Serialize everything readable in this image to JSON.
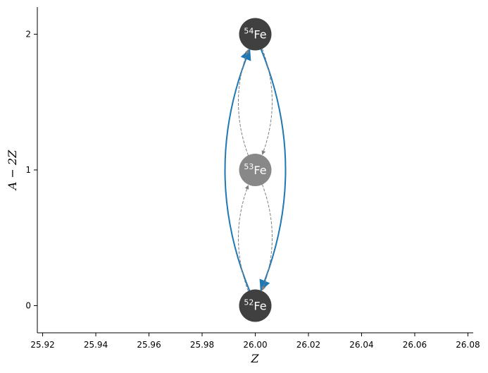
{
  "chart_data": {
    "type": "network",
    "xlabel": "Z",
    "ylabel": "A − 2Z",
    "xlim": [
      25.918,
      26.082
    ],
    "ylim": [
      -0.2,
      2.2
    ],
    "x_ticks": [
      {
        "value": 25.92,
        "label": "25.92"
      },
      {
        "value": 25.94,
        "label": "25.94"
      },
      {
        "value": 25.96,
        "label": "25.96"
      },
      {
        "value": 25.98,
        "label": "25.98"
      },
      {
        "value": 26.0,
        "label": "26.00"
      },
      {
        "value": 26.02,
        "label": "26.02"
      },
      {
        "value": 26.04,
        "label": "26.04"
      },
      {
        "value": 26.06,
        "label": "26.06"
      },
      {
        "value": 26.08,
        "label": "26.08"
      }
    ],
    "y_ticks": [
      {
        "value": 0,
        "label": "0"
      },
      {
        "value": 1,
        "label": "1"
      },
      {
        "value": 2,
        "label": "2"
      }
    ],
    "nodes": [
      {
        "id": "fe54",
        "mass": "54",
        "element": "Fe",
        "z": 26,
        "n_minus_z": 2,
        "color": "#404040"
      },
      {
        "id": "fe53",
        "mass": "53",
        "element": "Fe",
        "z": 26,
        "n_minus_z": 1,
        "color": "#888888"
      },
      {
        "id": "fe52",
        "mass": "52",
        "element": "Fe",
        "z": 26,
        "n_minus_z": 0,
        "color": "#404040"
      }
    ],
    "edges": [
      {
        "from": "fe52",
        "to": "fe54",
        "style": "solid",
        "color": "#1f77b4"
      },
      {
        "from": "fe54",
        "to": "fe52",
        "style": "solid",
        "color": "#1f77b4"
      },
      {
        "from": "fe54",
        "to": "fe53",
        "style": "dashed",
        "color": "#808080"
      },
      {
        "from": "fe53",
        "to": "fe54",
        "style": "dashed",
        "color": "#808080"
      },
      {
        "from": "fe53",
        "to": "fe52",
        "style": "dashed",
        "color": "#808080"
      },
      {
        "from": "fe52",
        "to": "fe53",
        "style": "dashed",
        "color": "#808080"
      }
    ]
  }
}
